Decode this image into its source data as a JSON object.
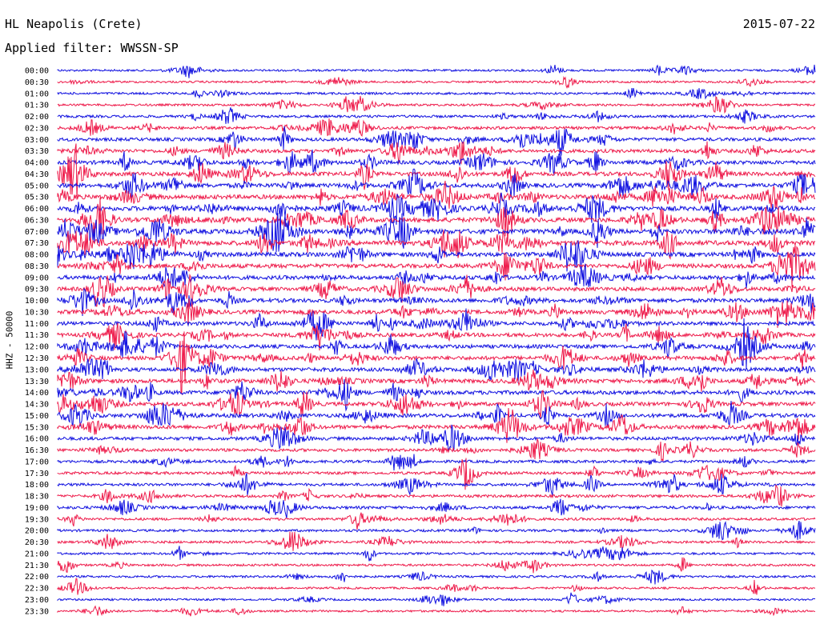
{
  "header": {
    "station": "HL Neapolis (Crete)",
    "date": "2015-07-22",
    "filter_label": "Applied filter: WWSSN-SP"
  },
  "chart_data": {
    "type": "line",
    "title": "HL Neapolis (Crete)",
    "subtitle": "Applied filter: WWSSN-SP",
    "ylabel": "HHZ - 50000",
    "xlabel": "",
    "grid": false,
    "row_labels": [
      "00:00",
      "00:30",
      "01:00",
      "01:30",
      "02:00",
      "02:30",
      "03:00",
      "03:30",
      "04:00",
      "04:30",
      "05:00",
      "05:30",
      "06:00",
      "06:30",
      "07:00",
      "07:30",
      "08:00",
      "08:30",
      "09:00",
      "09:30",
      "10:00",
      "10:30",
      "11:00",
      "11:30",
      "12:00",
      "12:30",
      "13:00",
      "13:30",
      "14:00",
      "14:30",
      "15:00",
      "15:30",
      "16:00",
      "16:30",
      "17:00",
      "17:30",
      "18:00",
      "18:30",
      "19:00",
      "19:30",
      "20:00",
      "20:30",
      "21:00",
      "21:30",
      "22:00",
      "22:30",
      "23:00",
      "23:30"
    ],
    "series_colors": [
      "#1010e0",
      "#ee1a4a"
    ],
    "activity_level": [
      0.2,
      0.2,
      0.25,
      0.25,
      0.35,
      0.45,
      0.55,
      0.6,
      0.7,
      0.75,
      0.8,
      0.85,
      0.9,
      0.9,
      0.95,
      0.95,
      0.85,
      0.8,
      0.75,
      0.7,
      0.75,
      0.75,
      0.7,
      0.7,
      0.7,
      0.7,
      0.7,
      0.75,
      0.75,
      0.7,
      0.7,
      0.7,
      0.55,
      0.45,
      0.4,
      0.4,
      0.4,
      0.4,
      0.45,
      0.35,
      0.3,
      0.3,
      0.25,
      0.25,
      0.25,
      0.2,
      0.2,
      0.2
    ]
  }
}
